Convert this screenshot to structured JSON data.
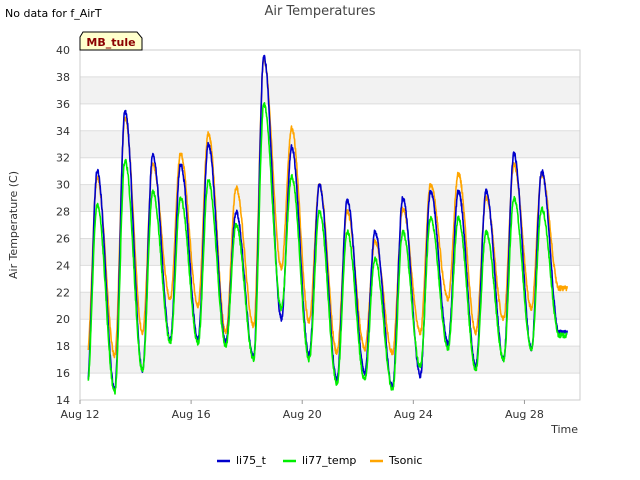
{
  "header": {
    "no_data_text": "No data for f_AirT"
  },
  "site_label": "MB_tule",
  "chart_data": {
    "type": "line",
    "title": "Air Temperatures",
    "xlabel": "Time",
    "ylabel": "Air Temperature (C)",
    "ylim": [
      14,
      40
    ],
    "yticks": [
      14,
      16,
      18,
      20,
      22,
      24,
      26,
      28,
      30,
      32,
      34,
      36,
      38,
      40
    ],
    "xlim_days": [
      12,
      30
    ],
    "xticks": [
      {
        "day": 12,
        "label": "Aug 12"
      },
      {
        "day": 16,
        "label": "Aug 16"
      },
      {
        "day": 20,
        "label": "Aug 20"
      },
      {
        "day": 24,
        "label": "Aug 24"
      },
      {
        "day": 28,
        "label": "Aug 28"
      }
    ],
    "grid": true,
    "legend_position": "bottom-center",
    "colors": {
      "li75_t": "#0000cc",
      "li77_temp": "#00ee00",
      "Tsonic": "#ffa500"
    },
    "series": [
      {
        "name": "li75_t",
        "daily_min": [
          15.0,
          14.8,
          16.2,
          18.5,
          18.5,
          18.3,
          17.2,
          20.0,
          17.3,
          15.5,
          16.0,
          15.0,
          15.8,
          18.2,
          16.5,
          17.0,
          17.8,
          19.0
        ],
        "daily_max": [
          31.0,
          35.5,
          32.2,
          31.5,
          33.0,
          28.0,
          39.5,
          32.8,
          30.0,
          28.8,
          26.5,
          29.0,
          29.5,
          29.5,
          29.5,
          32.3,
          31.0
        ]
      },
      {
        "name": "li77_temp",
        "daily_min": [
          14.7,
          14.6,
          16.2,
          18.3,
          18.2,
          18.0,
          17.0,
          20.8,
          17.0,
          15.2,
          15.5,
          14.8,
          16.5,
          17.8,
          16.3,
          17.0,
          17.8,
          18.8
        ],
        "daily_max": [
          28.5,
          31.8,
          29.5,
          29.0,
          30.3,
          27.0,
          36.0,
          30.6,
          28.0,
          26.5,
          24.5,
          26.5,
          27.5,
          27.5,
          26.5,
          29.0,
          28.2
        ]
      },
      {
        "name": "Tsonic",
        "daily_min": [
          17.3,
          17.3,
          19.0,
          21.5,
          21.0,
          19.0,
          19.5,
          23.8,
          19.8,
          17.5,
          17.8,
          17.5,
          19.0,
          21.5,
          19.0,
          20.0,
          20.8,
          22.3
        ],
        "daily_max": [
          30.5,
          35.0,
          31.5,
          32.3,
          33.8,
          29.8,
          39.3,
          34.2,
          30.0,
          28.0,
          25.8,
          28.2,
          30.0,
          30.8,
          29.0,
          31.5,
          30.8
        ]
      }
    ]
  }
}
